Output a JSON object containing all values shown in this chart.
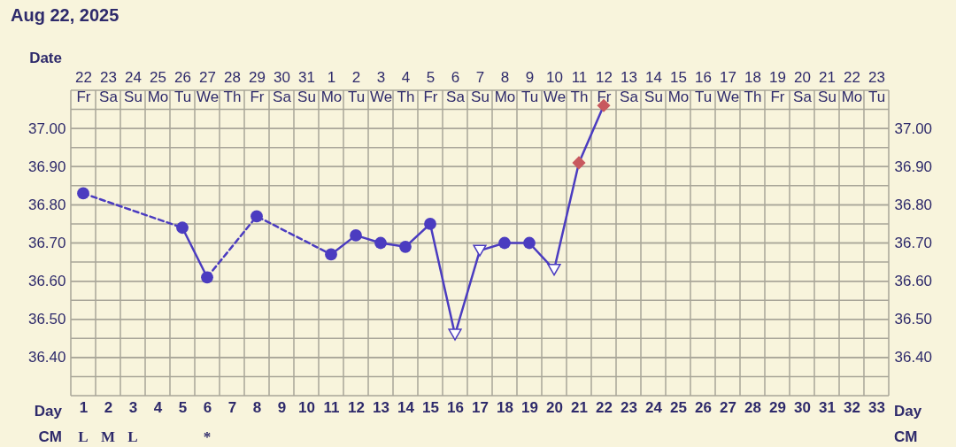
{
  "chart_data": {
    "type": "line",
    "title": "Aug 22, 2025",
    "xlabel": "Day",
    "x2label": "Date",
    "xlim": [
      0.5,
      33.5
    ],
    "xticks": [
      {
        "value": 0.5,
        "label": null
      },
      1,
      {
        "value": 1.5,
        "label": null
      },
      2,
      {
        "value": 2.5,
        "label": null
      },
      3,
      {
        "value": 3.5,
        "label": null
      },
      4,
      {
        "value": 4.5,
        "label": null
      },
      5,
      {
        "value": 5.5,
        "label": null
      },
      6,
      {
        "value": 6.5,
        "label": null
      },
      7,
      {
        "value": 7.5,
        "label": null
      },
      8,
      {
        "value": 8.5,
        "label": null
      },
      9,
      {
        "value": 9.5,
        "label": null
      },
      10,
      {
        "value": 10.5,
        "label": null
      },
      11,
      {
        "value": 11.5,
        "label": null
      },
      12,
      {
        "value": 12.5,
        "label": null
      },
      13,
      {
        "value": 13.5,
        "label": null
      },
      14,
      {
        "value": 14.5,
        "label": null
      },
      15,
      {
        "value": 15.5,
        "label": null
      },
      16,
      {
        "value": 16.5,
        "label": null
      },
      17,
      {
        "value": 17.5,
        "label": null
      },
      18,
      {
        "value": 18.5,
        "label": null
      },
      19,
      {
        "value": 19.5,
        "label": null
      },
      20,
      {
        "value": 20.5,
        "label": null
      },
      21,
      {
        "value": 21.5,
        "label": null
      },
      22,
      {
        "value": 22.5,
        "label": null
      },
      23,
      {
        "value": 23.5,
        "label": null
      },
      24,
      {
        "value": 24.5,
        "label": null
      },
      25,
      {
        "value": 25.5,
        "label": null
      },
      26,
      {
        "value": 26.5,
        "label": null
      },
      27,
      {
        "value": 27.5,
        "label": null
      },
      28,
      {
        "value": 28.5,
        "label": null
      },
      29,
      {
        "value": 29.5,
        "label": null
      },
      30,
      {
        "value": 30.5,
        "label": null
      },
      31,
      {
        "value": 31.5,
        "label": null
      },
      32,
      {
        "value": 32.5,
        "label": null
      },
      33,
      {
        "value": 33.5,
        "label": null
      }
    ],
    "x2lim": [
      "2025-08-21T12:00",
      "2025-09-23T12:00"
    ],
    "x2ticks": [
      {
        "value": "2025-08-22",
        "label": "22\nFr"
      },
      {
        "value": "2025-08-23",
        "label": "23\nSa"
      },
      {
        "value": "2025-08-24",
        "label": "24\nSu"
      },
      {
        "value": "2025-08-25",
        "label": "25\nMo"
      },
      {
        "value": "2025-08-26",
        "label": "26\nTu"
      },
      {
        "value": "2025-08-27",
        "label": "27\nWe"
      },
      {
        "value": "2025-08-28",
        "label": "28\nTh"
      },
      {
        "value": "2025-08-29",
        "label": "29\nFr"
      },
      {
        "value": "2025-08-30",
        "label": "30\nSa"
      },
      {
        "value": "2025-08-31",
        "label": "31\nSu"
      },
      {
        "value": "2025-09-01",
        "label": "1\nMo"
      },
      {
        "value": "2025-09-02",
        "label": "2\nTu"
      },
      {
        "value": "2025-09-03",
        "label": "3\nWe"
      },
      {
        "value": "2025-09-04",
        "label": "4\nTh"
      },
      {
        "value": "2025-09-05",
        "label": "5\nFr"
      },
      {
        "value": "2025-09-06",
        "label": "6\nSa"
      },
      {
        "value": "2025-09-07",
        "label": "7\nSu"
      },
      {
        "value": "2025-09-08",
        "label": "8\nMo"
      },
      {
        "value": "2025-09-09",
        "label": "9\nTu"
      },
      {
        "value": "2025-09-10",
        "label": "10\nWe"
      },
      {
        "value": "2025-09-11",
        "label": "11\nTh"
      },
      {
        "value": "2025-09-12",
        "label": "12\nFr"
      },
      {
        "value": "2025-09-13",
        "label": "13\nSa"
      },
      {
        "value": "2025-09-14",
        "label": "14\nSu"
      },
      {
        "value": "2025-09-15",
        "label": "15\nMo"
      },
      {
        "value": "2025-09-16",
        "label": "16\nTu"
      },
      {
        "value": "2025-09-17",
        "label": "17\nWe"
      },
      {
        "value": "2025-09-18",
        "label": "18\nTh"
      },
      {
        "value": "2025-09-19",
        "label": "19\nFr"
      },
      {
        "value": "2025-09-20",
        "label": "20\nSa"
      },
      {
        "value": "2025-09-21",
        "label": "21\nSu"
      },
      {
        "value": "2025-09-22",
        "label": "22\nMo"
      },
      {
        "value": "2025-09-23",
        "label": "23\nTu"
      }
    ],
    "ylim": [
      36.3,
      37.1
    ],
    "yticks": [
      {
        "value": 36.3,
        "label": null
      },
      {
        "value": 36.35,
        "label": null
      },
      {
        "value": 36.4,
        "label": "36.40"
      },
      {
        "value": 36.45,
        "label": null
      },
      {
        "value": 36.5,
        "label": "36.50"
      },
      {
        "value": 36.55,
        "label": null
      },
      {
        "value": 36.6,
        "label": "36.60"
      },
      {
        "value": 36.65,
        "label": null
      },
      {
        "value": 36.7,
        "label": "36.70"
      },
      {
        "value": 36.75,
        "label": null
      },
      {
        "value": 36.8,
        "label": "36.80"
      },
      {
        "value": 36.85,
        "label": null
      },
      {
        "value": 36.9,
        "label": "36.90"
      },
      {
        "value": 36.95,
        "label": null
      },
      {
        "value": 37.0,
        "label": "37.00"
      },
      {
        "value": 37.05,
        "label": null
      },
      {
        "value": 37.1,
        "label": null
      }
    ],
    "y2lim": [
      36.3,
      37.1
    ],
    "y2ticks": [
      {
        "value": 36.4,
        "label": "36.40"
      },
      {
        "value": 36.5,
        "label": "36.50"
      },
      {
        "value": 36.6,
        "label": "36.60"
      },
      {
        "value": 36.7,
        "label": "36.70"
      },
      {
        "value": 36.8,
        "label": "36.80"
      },
      {
        "value": 36.9,
        "label": "36.90"
      },
      {
        "value": 37.0,
        "label": "37.00"
      }
    ],
    "grid": true,
    "series": [
      {
        "type": "line",
        "x": [
          1,
          5
        ],
        "values": [
          36.83,
          36.74
        ],
        "color": "#4b3cc0",
        "line_style": "dashed",
        "marker": "none"
      },
      {
        "type": "line",
        "x": [
          5,
          6
        ],
        "values": [
          36.74,
          36.61
        ],
        "color": "#4b3cc0",
        "line_style": "solid",
        "marker": "none"
      },
      {
        "type": "line",
        "x": [
          6,
          8,
          11
        ],
        "values": [
          36.61,
          36.77,
          36.67
        ],
        "color": "#4b3cc0",
        "line_style": "dashed",
        "marker": "none"
      },
      {
        "type": "line",
        "x": [
          11,
          12,
          13,
          14,
          15,
          16,
          17,
          18,
          19,
          20,
          21,
          22
        ],
        "values": [
          36.67,
          36.72,
          36.7,
          36.69,
          36.75,
          36.46,
          36.68,
          36.7,
          36.7,
          36.63,
          36.91,
          37.06
        ],
        "color": "#4b3cc0",
        "line_style": "solid",
        "marker": "none"
      },
      {
        "type": "scatter",
        "x": [
          1,
          5,
          6,
          8,
          11,
          12,
          13,
          14,
          15,
          18,
          19
        ],
        "values": [
          36.83,
          36.74,
          36.61,
          36.77,
          36.67,
          36.72,
          36.7,
          36.69,
          36.75,
          36.7,
          36.7
        ],
        "color": "#4b3cc0",
        "marker": "circle"
      },
      {
        "type": "scatter",
        "x": [
          16,
          17,
          20
        ],
        "values": [
          36.46,
          36.68,
          36.63
        ],
        "color": "#4b3cc0",
        "marker": "triangle"
      },
      {
        "type": "scatter",
        "x": [
          21,
          22
        ],
        "values": [
          36.91,
          37.06
        ],
        "color": "#c8585e",
        "marker": "diamond"
      }
    ],
    "annotations": [
      "CM",
      "L",
      "M",
      "L",
      "*"
    ]
  }
}
